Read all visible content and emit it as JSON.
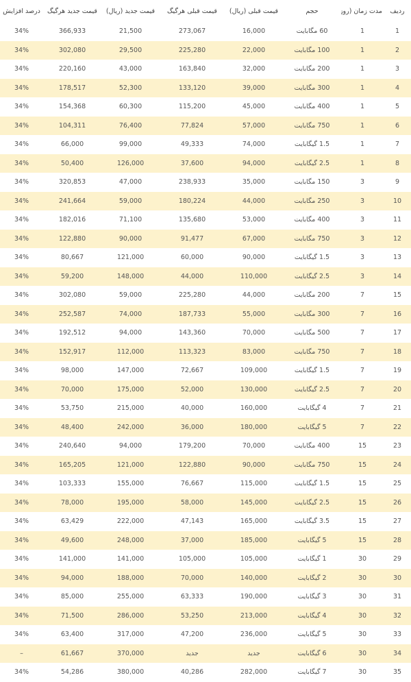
{
  "table": {
    "headers": [
      "ردیف",
      "مدت زمان (روز)",
      "حجم",
      "قیمت قبلی (ریال)",
      "قیمت قبلی هرگیگ",
      "قیمت جدید (ریال)",
      "قیمت جدید هرگیگ",
      "درصد افزایش"
    ],
    "rows": [
      [
        "1",
        "1",
        "60 مگابایت",
        "16,000",
        "273,067",
        "21,500",
        "366,933",
        "34%"
      ],
      [
        "2",
        "1",
        "100 مگابایت",
        "22,000",
        "225,280",
        "29,500",
        "302,080",
        "34%"
      ],
      [
        "3",
        "1",
        "200 مگابایت",
        "32,000",
        "163,840",
        "43,000",
        "220,160",
        "34%"
      ],
      [
        "4",
        "1",
        "300 مگابایت",
        "39,000",
        "133,120",
        "52,300",
        "178,517",
        "34%"
      ],
      [
        "5",
        "1",
        "400 مگابایت",
        "45,000",
        "115,200",
        "60,300",
        "154,368",
        "34%"
      ],
      [
        "6",
        "1",
        "750 مگابایت",
        "57,000",
        "77,824",
        "76,400",
        "104,311",
        "34%"
      ],
      [
        "7",
        "1",
        "1.5 گیگابایت",
        "74,000",
        "49,333",
        "99,000",
        "66,000",
        "34%"
      ],
      [
        "8",
        "1",
        "2.5 گیگابایت",
        "94,000",
        "37,600",
        "126,000",
        "50,400",
        "34%"
      ],
      [
        "9",
        "3",
        "150 مگابایت",
        "35,000",
        "238,933",
        "47,000",
        "320,853",
        "34%"
      ],
      [
        "10",
        "3",
        "250 مگابایت",
        "44,000",
        "180,224",
        "59,000",
        "241,664",
        "34%"
      ],
      [
        "11",
        "3",
        "400 مگابایت",
        "53,000",
        "135,680",
        "71,100",
        "182,016",
        "34%"
      ],
      [
        "12",
        "3",
        "750 مگابایت",
        "67,000",
        "91,477",
        "90,000",
        "122,880",
        "34%"
      ],
      [
        "13",
        "3",
        "1.5 گیگابایت",
        "90,000",
        "60,000",
        "121,000",
        "80,667",
        "34%"
      ],
      [
        "14",
        "3",
        "2.5 گیگابایت",
        "110,000",
        "44,000",
        "148,000",
        "59,200",
        "34%"
      ],
      [
        "15",
        "7",
        "200 مگابایت",
        "44,000",
        "225,280",
        "59,000",
        "302,080",
        "34%"
      ],
      [
        "16",
        "7",
        "300 مگابایت",
        "55,000",
        "187,733",
        "74,000",
        "252,587",
        "34%"
      ],
      [
        "17",
        "7",
        "500 مگابایت",
        "70,000",
        "143,360",
        "94,000",
        "192,512",
        "34%"
      ],
      [
        "18",
        "7",
        "750 مگابایت",
        "83,000",
        "113,323",
        "112,000",
        "152,917",
        "34%"
      ],
      [
        "19",
        "7",
        "1.5 گیگابایت",
        "109,000",
        "72,667",
        "147,000",
        "98,000",
        "34%"
      ],
      [
        "20",
        "7",
        "2.5 گیگابایت",
        "130,000",
        "52,000",
        "175,000",
        "70,000",
        "34%"
      ],
      [
        "21",
        "7",
        "4 گیگابایت",
        "160,000",
        "40,000",
        "215,000",
        "53,750",
        "34%"
      ],
      [
        "22",
        "7",
        "5 گیگابایت",
        "180,000",
        "36,000",
        "242,000",
        "48,400",
        "34%"
      ],
      [
        "23",
        "15",
        "400 مگابایت",
        "70,000",
        "179,200",
        "94,000",
        "240,640",
        "34%"
      ],
      [
        "24",
        "15",
        "750 مگابایت",
        "90,000",
        "122,880",
        "121,000",
        "165,205",
        "34%"
      ],
      [
        "25",
        "15",
        "1.5 گیگابایت",
        "115,000",
        "76,667",
        "155,000",
        "103,333",
        "34%"
      ],
      [
        "26",
        "15",
        "2.5 گیگابایت",
        "145,000",
        "58,000",
        "195,000",
        "78,000",
        "34%"
      ],
      [
        "27",
        "15",
        "3.5 گیگابایت",
        "165,000",
        "47,143",
        "222,000",
        "63,429",
        "34%"
      ],
      [
        "28",
        "15",
        "5 گیگابایت",
        "185,000",
        "37,000",
        "248,000",
        "49,600",
        "34%"
      ],
      [
        "29",
        "30",
        "1 گیگابایت",
        "105,000",
        "105,000",
        "141,000",
        "141,000",
        "34%"
      ],
      [
        "30",
        "30",
        "2 گیگابایت",
        "140,000",
        "70,000",
        "188,000",
        "94,000",
        "34%"
      ],
      [
        "31",
        "30",
        "3 گیگابایت",
        "190,000",
        "63,333",
        "255,000",
        "85,000",
        "34%"
      ],
      [
        "32",
        "30",
        "4 گیگابایت",
        "213,000",
        "53,250",
        "286,000",
        "71,500",
        "34%"
      ],
      [
        "33",
        "30",
        "5 گیگابایت",
        "236,000",
        "47,200",
        "317,000",
        "63,400",
        "34%"
      ],
      [
        "34",
        "30",
        "6 گیگابایت",
        "جدید",
        "جدید",
        "370,000",
        "61,667",
        "–"
      ],
      [
        "35",
        "30",
        "7 گیگابایت",
        "282,000",
        "40,286",
        "380,000",
        "54,286",
        "34%"
      ]
    ]
  }
}
